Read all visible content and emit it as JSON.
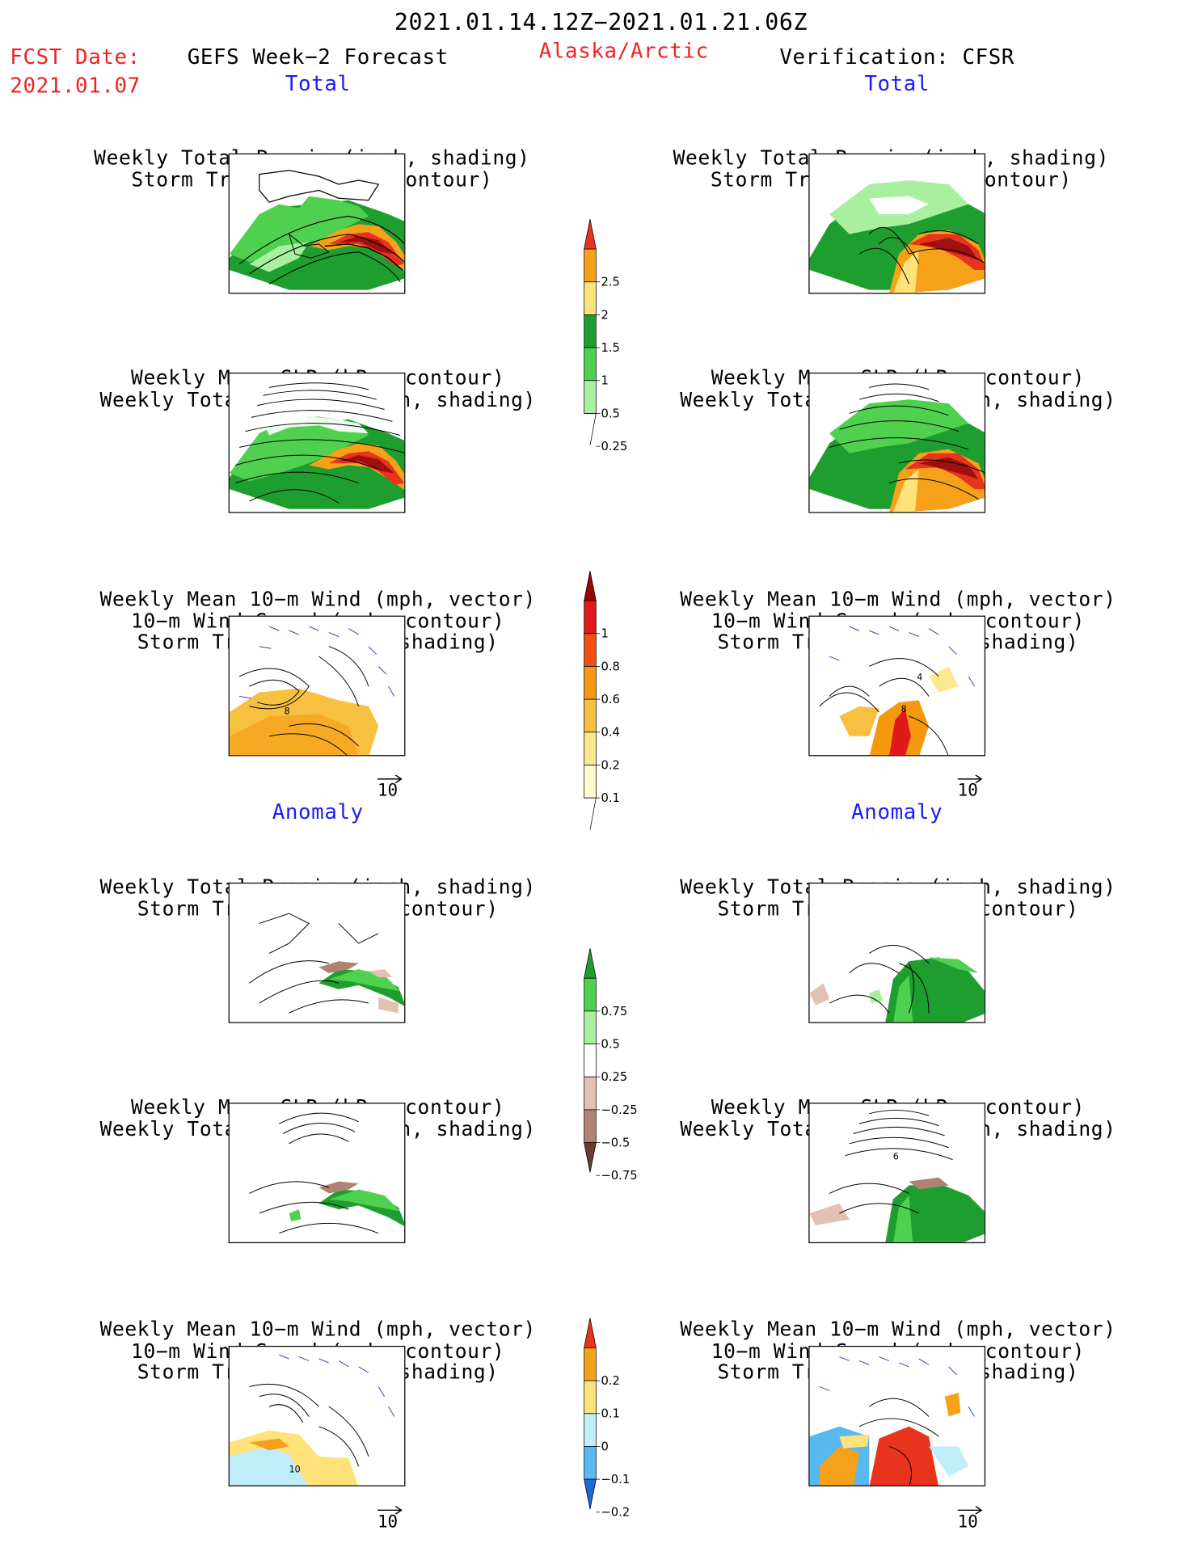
{
  "header": {
    "period": "2021.01.14.12Z−2021.01.21.06Z",
    "fcst_date_label": "FCST Date:",
    "fcst_date_value": "2021.01.07",
    "model_title": "GEFS Week−2 Forecast",
    "region": "Alaska/Arctic",
    "verification": "Verification: CFSR"
  },
  "sections": {
    "total": "Total",
    "anomaly": "Anomaly"
  },
  "panel_titles": {
    "precip_track": [
      "Weekly Total Precip (inch, shading)",
      "Storm Track Density (contour)"
    ],
    "slp_precip": [
      "Weekly Mean SLP (hPa, contour)",
      "Weekly Total Precip (inch, shading)"
    ],
    "wind_track": [
      "Weekly Mean 10−m Wind (mph, vector)",
      "10−m Wind Speed (mph, contour)",
      "Storm Track Density (shading)"
    ]
  },
  "vector_reference": "10",
  "panel_labels": {
    "wind_contour_fcst": "8",
    "wind_contour_obs_a": "4",
    "wind_contour_obs_b": "8",
    "wind_contour_anom_fcst": "10",
    "slp_contour_anom_obs": "6"
  },
  "colorbars": [
    {
      "name": "precip-total",
      "labels": [
        "2.5",
        "2",
        "1.5",
        "1",
        "0.5",
        "0.25"
      ],
      "colors": [
        "#e8341c",
        "#f5a21a",
        "#ffe27a",
        "#1e9e2e",
        "#4fd14f",
        "#a8f0a0"
      ]
    },
    {
      "name": "track-total",
      "labels": [
        "1",
        "0.8",
        "0.6",
        "0.4",
        "0.2",
        "0.1"
      ],
      "colors": [
        "#a00000",
        "#e01a1a",
        "#f05010",
        "#f59a10",
        "#f8c040",
        "#fde890",
        "#fffad0"
      ]
    },
    {
      "name": "precip-anomaly",
      "labels": [
        "0.75",
        "0.5",
        "0.25",
        "−0.25",
        "−0.5",
        "−0.75"
      ],
      "colors": [
        "#1e9e2e",
        "#4fd14f",
        "#a8f0a0",
        "#ffffff",
        "#e2c0b2",
        "#b08272",
        "#6a3c30"
      ]
    },
    {
      "name": "track-anomaly",
      "labels": [
        "0.2",
        "0.1",
        "0",
        "−0.1",
        "−0.2"
      ],
      "colors": [
        "#e8341c",
        "#f5a21a",
        "#ffe27a",
        "#bfeefa",
        "#58b8f0",
        "#1a6ad8"
      ]
    }
  ]
}
